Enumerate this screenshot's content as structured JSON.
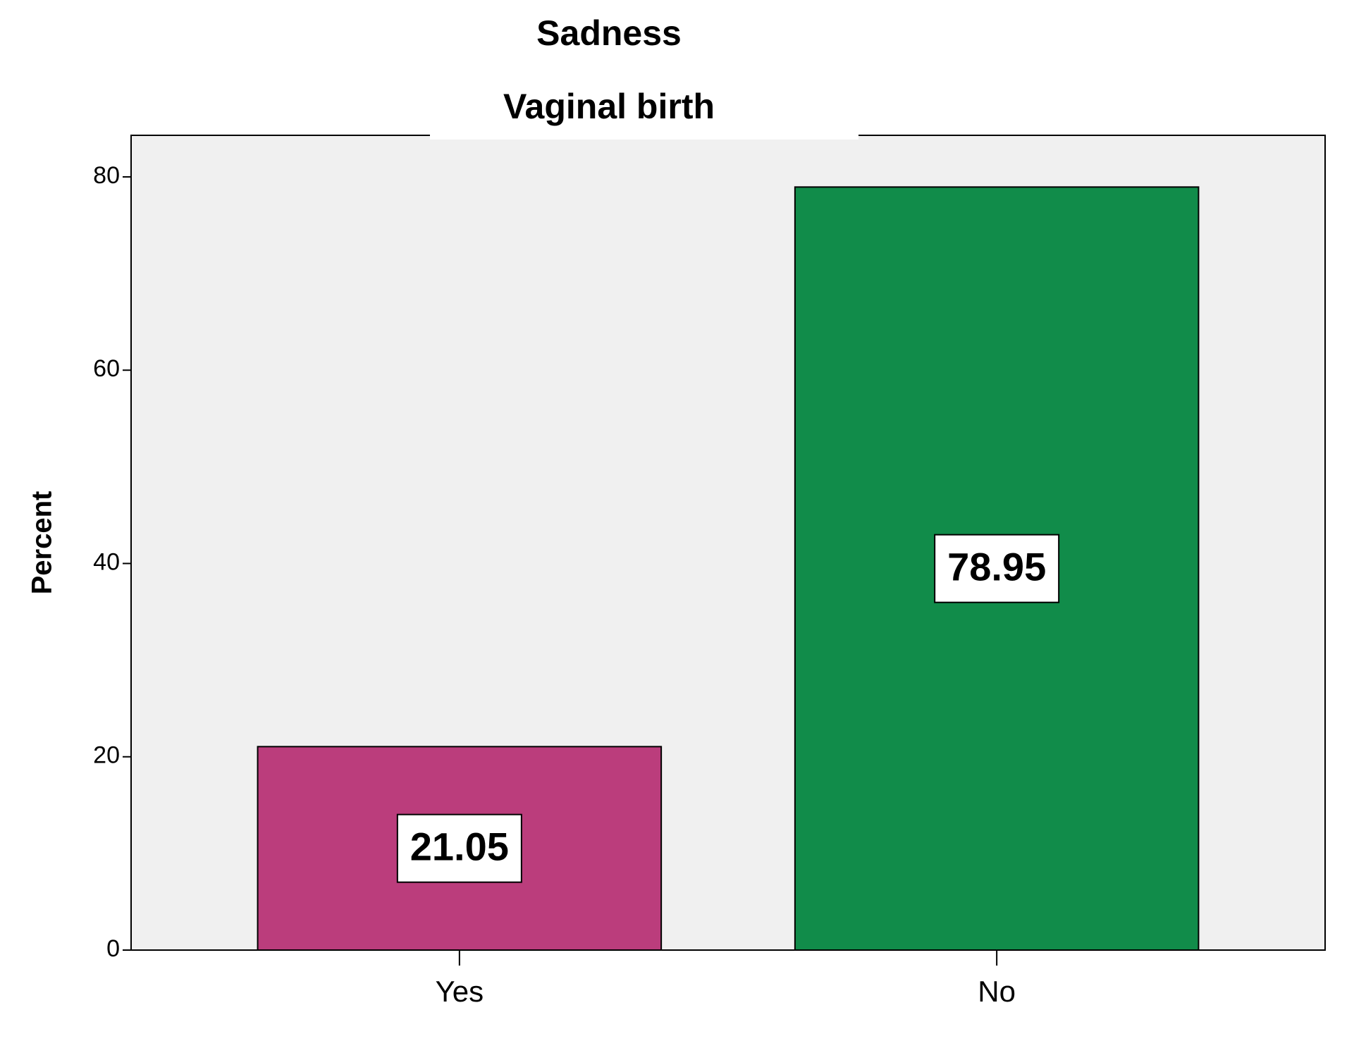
{
  "chart_data": {
    "type": "bar",
    "title": "Sadness",
    "subtitle": "Vaginal birth",
    "y_label": "Percent",
    "categories": [
      "Yes",
      "No"
    ],
    "values": [
      21.05,
      78.95
    ],
    "colors": [
      "#bb3d7c",
      "#118c4a"
    ],
    "ylim": [
      0,
      84.3
    ],
    "yticks": [
      0,
      20,
      40,
      60,
      80
    ],
    "grid": false
  }
}
